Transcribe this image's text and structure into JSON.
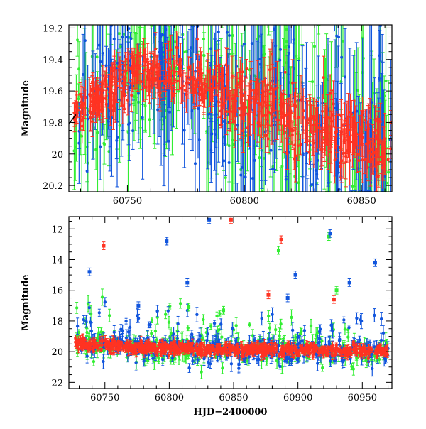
{
  "chart_data": [
    {
      "type": "scatter",
      "title": "",
      "xlabel": "",
      "ylabel": "Magnitude",
      "xlim": [
        60725,
        60863
      ],
      "ylim": [
        20.24,
        19.18
      ],
      "y_inverted": true,
      "x_ticks": [
        60750,
        60800,
        60850
      ],
      "x_tick_labels": [
        "60750",
        "60800",
        "60850"
      ],
      "y_ticks": [
        19.2,
        19.4,
        19.6,
        19.8,
        20.0,
        20.2
      ],
      "y_tick_labels": [
        "19.2",
        "19.4",
        "19.6",
        "19.8",
        "20",
        "20.2"
      ],
      "error_bars": true,
      "series": [
        {
          "name": "green",
          "color": "#33ee33"
        },
        {
          "name": "blue",
          "color": "#1155dd"
        },
        {
          "name": "red",
          "color": "#ff3322"
        }
      ],
      "trend_description": "Light curve rises from ~19.7 mag at HJD 60728 to a broad peak of ~19.45 mag near HJD 60760, then fades back to ~19.9-20.0 mag by HJD 60860; blue and green points scatter widely with large error bars."
    },
    {
      "type": "scatter",
      "title": "",
      "xlabel": "HJD−2400000",
      "ylabel": "Magnitude",
      "xlim": [
        60722,
        60973
      ],
      "ylim": [
        22.4,
        11.2
      ],
      "y_inverted": true,
      "x_ticks": [
        60750,
        60800,
        60850,
        60900,
        60950
      ],
      "x_tick_labels": [
        "60750",
        "60800",
        "60850",
        "60900",
        "60950"
      ],
      "y_ticks": [
        12,
        14,
        16,
        18,
        20,
        22
      ],
      "y_tick_labels": [
        "12",
        "14",
        "16",
        "18",
        "20",
        "22"
      ],
      "error_bars": true,
      "series": [
        {
          "name": "green",
          "color": "#33ee33"
        },
        {
          "name": "blue",
          "color": "#1155dd"
        },
        {
          "name": "red",
          "color": "#ff3322"
        }
      ],
      "outliers": [
        {
          "series": "red",
          "x": 60749,
          "y": 13.1
        },
        {
          "series": "blue",
          "x": 60738,
          "y": 14.8
        },
        {
          "series": "blue",
          "x": 60798,
          "y": 12.8
        },
        {
          "series": "blue",
          "x": 60831,
          "y": 11.4
        },
        {
          "series": "red",
          "x": 60848,
          "y": 11.4
        },
        {
          "series": "green",
          "x": 60885,
          "y": 13.4
        },
        {
          "series": "red",
          "x": 60887,
          "y": 12.7
        },
        {
          "series": "green",
          "x": 60924,
          "y": 12.5
        },
        {
          "series": "blue",
          "x": 60925,
          "y": 12.3
        },
        {
          "series": "blue",
          "x": 60960,
          "y": 14.2
        },
        {
          "series": "blue",
          "x": 60898,
          "y": 15.0
        },
        {
          "series": "blue",
          "x": 60940,
          "y": 15.5
        },
        {
          "series": "blue",
          "x": 60814,
          "y": 15.5
        },
        {
          "series": "blue",
          "x": 60776,
          "y": 17.0
        },
        {
          "series": "green",
          "x": 60930,
          "y": 16.0
        },
        {
          "series": "red",
          "x": 60877,
          "y": 16.3
        },
        {
          "series": "blue",
          "x": 60892,
          "y": 16.5
        },
        {
          "series": "red",
          "x": 60928,
          "y": 16.6
        },
        {
          "series": "green",
          "x": 60842,
          "y": 17.3
        },
        {
          "series": "green",
          "x": 60815,
          "y": 17.1
        }
      ],
      "trend_description": "Bulk of observations lie near magnitude 19.5-20.5 across the full baseline, with many scattered outliers between 11.4 and 19 mag."
    }
  ]
}
